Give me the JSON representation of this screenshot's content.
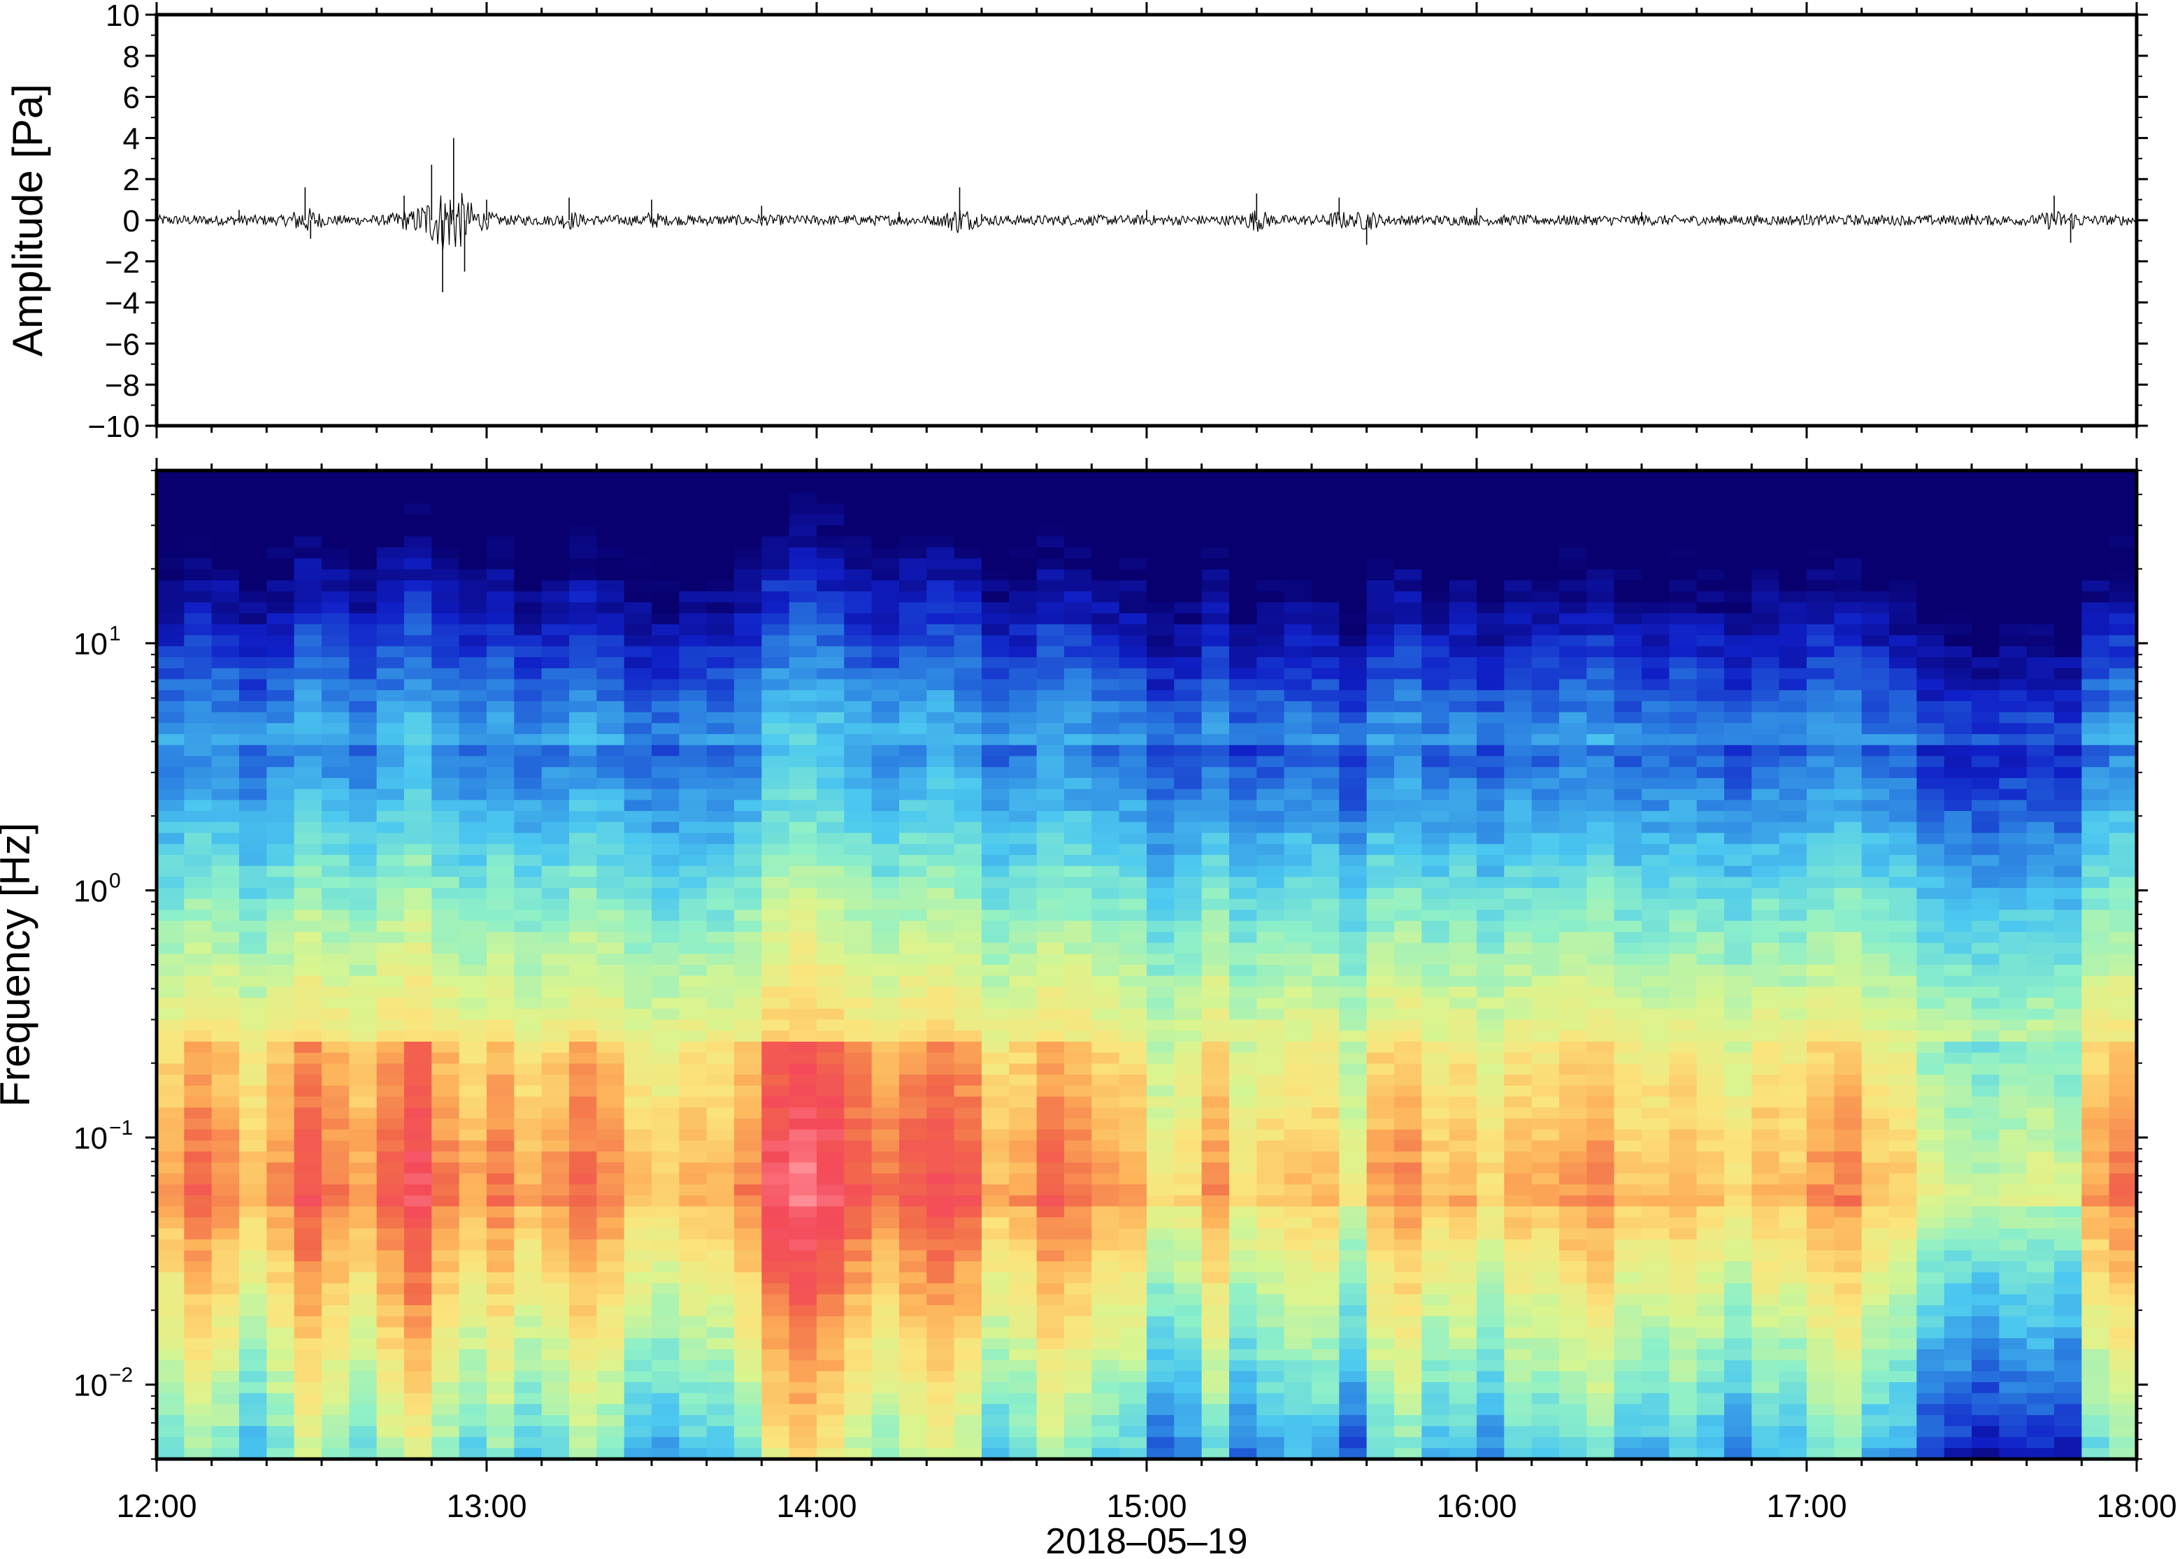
{
  "chart_data": [
    {
      "type": "line",
      "panel": "waveform",
      "ylabel": "Amplitude [Pa]",
      "ylim": [
        -10,
        10
      ],
      "yticks": [
        "10",
        "8",
        "6",
        "4",
        "2",
        "0",
        "−2",
        "−4",
        "−6",
        "−8",
        "−10"
      ],
      "ytick_values": [
        10,
        8,
        6,
        4,
        2,
        0,
        -2,
        -4,
        -6,
        -8,
        -10
      ],
      "xlim": [
        "12:00",
        "18:00"
      ],
      "series": [
        {
          "x": [
            "12:00",
            "12:15",
            "12:27",
            "12:28",
            "12:45",
            "12:50",
            "12:52",
            "12:54",
            "12:56",
            "13:00",
            "13:15",
            "13:30",
            "13:50",
            "14:15",
            "14:26",
            "14:30",
            "15:00",
            "15:20",
            "15:35",
            "15:40",
            "16:00",
            "16:30",
            "17:00",
            "17:30",
            "17:45",
            "17:48",
            "18:00"
          ],
          "y": [
            0.4,
            0.5,
            1.6,
            -0.9,
            1.2,
            2.7,
            -3.5,
            4.0,
            -2.5,
            1.0,
            1.1,
            1.0,
            0.7,
            0.4,
            1.6,
            0.3,
            0.5,
            1.3,
            1.1,
            -1.2,
            0.6,
            0.4,
            0.3,
            0.3,
            1.2,
            -1.1,
            0.3
          ]
        }
      ],
      "grid": false
    },
    {
      "type": "heatmap",
      "panel": "spectrogram",
      "ylabel": "Frequency [Hz]",
      "xlabel": "2018–05–19",
      "y_scale": "log",
      "ylim": [
        0.005,
        50
      ],
      "yticks": [
        {
          "base": "10",
          "exp": "−2",
          "value": 0.01
        },
        {
          "base": "10",
          "exp": "−1",
          "value": 0.1
        },
        {
          "base": "10",
          "exp": "0",
          "value": 1
        },
        {
          "base": "10",
          "exp": "1",
          "value": 10
        }
      ],
      "xticks": [
        "12:00",
        "13:00",
        "14:00",
        "15:00",
        "16:00",
        "17:00",
        "18:00"
      ],
      "colormap": [
        "#08006e",
        "#1020c8",
        "#2a7de0",
        "#4cc8f0",
        "#8ef0c8",
        "#d8f590",
        "#fbe47c",
        "#fdb35a",
        "#f26a4a",
        "#f44a5a",
        "#ff8d95"
      ],
      "columns": 72,
      "intensity_by_column": [
        0.55,
        0.62,
        0.58,
        0.5,
        0.57,
        0.66,
        0.6,
        0.55,
        0.64,
        0.7,
        0.6,
        0.54,
        0.6,
        0.52,
        0.56,
        0.62,
        0.58,
        0.5,
        0.48,
        0.52,
        0.52,
        0.58,
        0.72,
        0.76,
        0.72,
        0.65,
        0.6,
        0.65,
        0.68,
        0.64,
        0.52,
        0.55,
        0.63,
        0.6,
        0.55,
        0.54,
        0.42,
        0.45,
        0.56,
        0.44,
        0.48,
        0.5,
        0.5,
        0.4,
        0.55,
        0.58,
        0.5,
        0.52,
        0.46,
        0.53,
        0.52,
        0.56,
        0.58,
        0.5,
        0.5,
        0.53,
        0.5,
        0.45,
        0.52,
        0.5,
        0.56,
        0.58,
        0.5,
        0.48,
        0.38,
        0.36,
        0.34,
        0.36,
        0.37,
        0.35,
        0.55,
        0.6
      ]
    }
  ]
}
